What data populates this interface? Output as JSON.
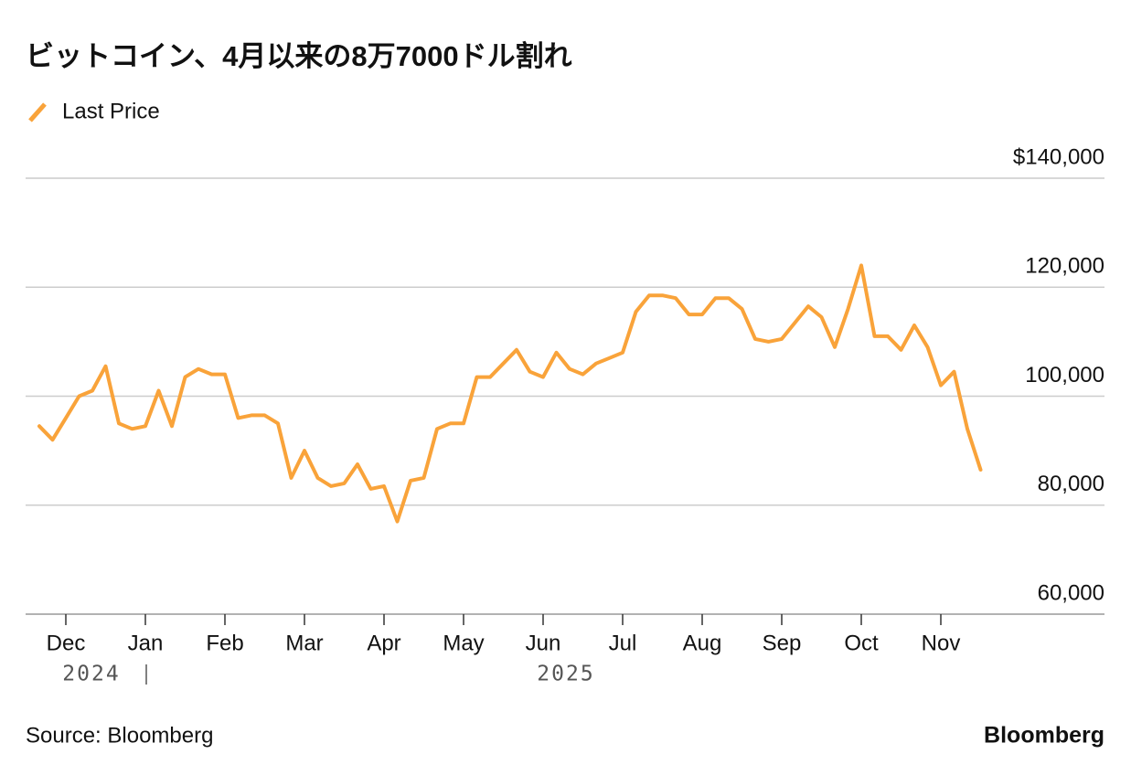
{
  "chart_data": {
    "type": "line",
    "title": "ビットコイン、4月以来の8万7000ドル割れ",
    "source": "Source: Bloomberg",
    "brand": "Bloomberg",
    "categories": [
      null,
      null,
      "Dec",
      null,
      null,
      null,
      null,
      null,
      "Jan",
      null,
      null,
      null,
      null,
      null,
      "Feb",
      null,
      null,
      null,
      null,
      null,
      "Mar",
      null,
      null,
      null,
      null,
      null,
      "Apr",
      null,
      null,
      null,
      null,
      null,
      "May",
      null,
      null,
      null,
      null,
      null,
      "Jun",
      null,
      null,
      null,
      null,
      null,
      "Jul",
      null,
      null,
      null,
      null,
      null,
      "Aug",
      null,
      null,
      null,
      null,
      null,
      "Sep",
      null,
      null,
      null,
      null,
      null,
      "Oct",
      null,
      null,
      null,
      null,
      null,
      "Nov",
      null,
      null,
      null
    ],
    "year_labels": [
      "2024",
      "2025"
    ],
    "series": [
      {
        "name": "Last Price",
        "color": "#f9a33a",
        "values": [
          94500,
          92000,
          96000,
          100000,
          101000,
          105500,
          95000,
          94000,
          94500,
          101000,
          94500,
          103500,
          105000,
          104000,
          104000,
          96000,
          96500,
          96500,
          95000,
          85000,
          90000,
          85000,
          83500,
          84000,
          87500,
          83000,
          83500,
          77000,
          84500,
          85000,
          94000,
          95000,
          95000,
          103500,
          103500,
          106000,
          108500,
          104500,
          103500,
          108000,
          105000,
          104000,
          106000,
          107000,
          108000,
          115500,
          118500,
          118500,
          118000,
          115000,
          115000,
          118000,
          118000,
          116000,
          110500,
          110000,
          110500,
          113500,
          116500,
          114500,
          109000,
          116000,
          124000,
          111000,
          111000,
          108500,
          113000,
          109000,
          102000,
          104500,
          94000,
          86500
        ]
      }
    ],
    "ylim": [
      60000,
      140000
    ],
    "yticks": [
      {
        "value": 60000,
        "label": "60,000"
      },
      {
        "value": 80000,
        "label": "80,000"
      },
      {
        "value": 100000,
        "label": "100,000"
      },
      {
        "value": 120000,
        "label": "120,000"
      },
      {
        "value": 140000,
        "label": "$140,000"
      }
    ],
    "grid": true
  }
}
